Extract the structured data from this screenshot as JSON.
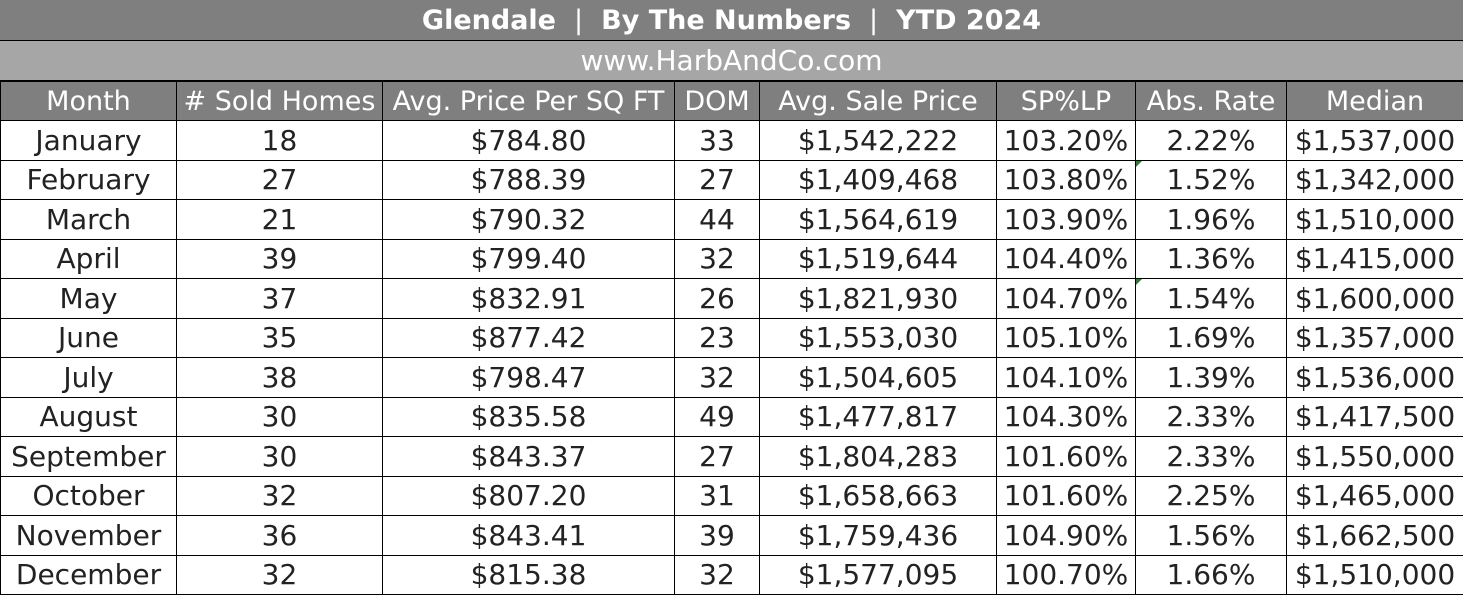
{
  "header": {
    "city": "Glendale",
    "separator": "|",
    "subtitle": "By The Numbers",
    "period": "YTD 2024",
    "website": "www.HarbAndCo.com"
  },
  "table": {
    "columns": [
      "Month",
      "# Sold Homes",
      "Avg. Price Per SQ FT",
      "DOM",
      "Avg. Sale Price",
      "SP%LP",
      "Abs. Rate",
      "Median"
    ],
    "rows": [
      [
        "January",
        "18",
        "$784.80",
        "33",
        "$1,542,222",
        "103.20%",
        "2.22%",
        "$1,537,000"
      ],
      [
        "February",
        "27",
        "$788.39",
        "27",
        "$1,409,468",
        "103.80%",
        "1.52%",
        "$1,342,000"
      ],
      [
        "March",
        "21",
        "$790.32",
        "44",
        "$1,564,619",
        "103.90%",
        "1.96%",
        "$1,510,000"
      ],
      [
        "April",
        "39",
        "$799.40",
        "32",
        "$1,519,644",
        "104.40%",
        "1.36%",
        "$1,415,000"
      ],
      [
        "May",
        "37",
        "$832.91",
        "26",
        "$1,821,930",
        "104.70%",
        "1.54%",
        "$1,600,000"
      ],
      [
        "June",
        "35",
        "$877.42",
        "23",
        "$1,553,030",
        "105.10%",
        "1.69%",
        "$1,357,000"
      ],
      [
        "July",
        "38",
        "$798.47",
        "32",
        "$1,504,605",
        "104.10%",
        "1.39%",
        "$1,536,000"
      ],
      [
        "August",
        "30",
        "$835.58",
        "49",
        "$1,477,817",
        "104.30%",
        "2.33%",
        "$1,417,500"
      ],
      [
        "September",
        "30",
        "$843.37",
        "27",
        "$1,804,283",
        "101.60%",
        "2.33%",
        "$1,550,000"
      ],
      [
        "October",
        "32",
        "$807.20",
        "31",
        "$1,658,663",
        "101.60%",
        "2.25%",
        "$1,465,000"
      ],
      [
        "November",
        "36",
        "$843.41",
        "39",
        "$1,759,436",
        "104.90%",
        "1.56%",
        "$1,662,500"
      ],
      [
        "December",
        "32",
        "$815.38",
        "32",
        "$1,577,095",
        "100.70%",
        "1.66%",
        "$1,510,000"
      ]
    ]
  },
  "colors": {
    "title_bg": "#7f7f7f",
    "subtitle_bg": "#a6a6a6",
    "header_bg": "#7f7f7f",
    "cell_indicator": "#2e7d32"
  }
}
